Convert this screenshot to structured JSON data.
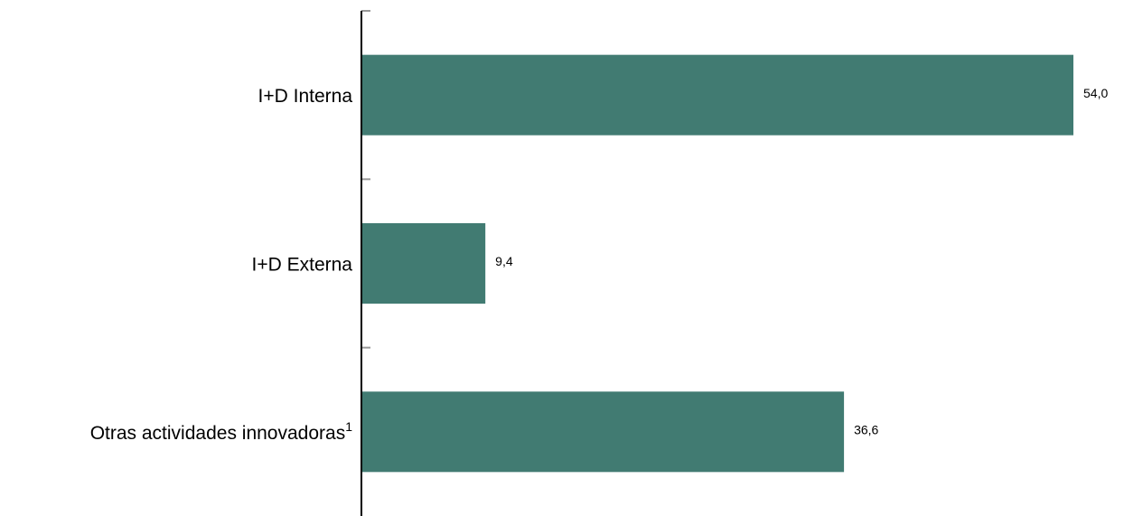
{
  "chart_data": {
    "type": "bar",
    "orientation": "horizontal",
    "categories": [
      "I+D Interna",
      "I+D Externa",
      "Otras actividades innovadoras"
    ],
    "category_superscripts": [
      "",
      "",
      "1"
    ],
    "values": [
      54.0,
      9.4,
      36.6
    ],
    "value_labels": [
      "54,0",
      "9,4",
      "36,6"
    ],
    "xlim": [
      0,
      54.0
    ],
    "title": "",
    "xlabel": "",
    "ylabel": "",
    "grid": false,
    "legend": "none",
    "bar_color": "#417b72",
    "axis_color": "#000000",
    "tick_color": "#999999"
  }
}
